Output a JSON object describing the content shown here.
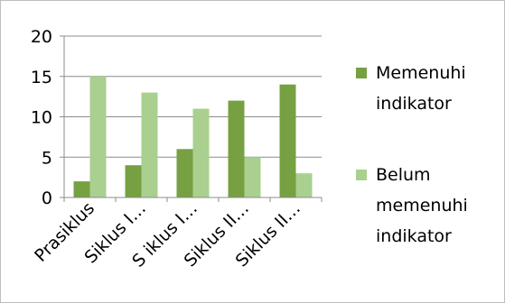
{
  "chart_data": {
    "type": "bar",
    "title": "",
    "xlabel": "",
    "ylabel": "",
    "ylim": [
      0,
      20
    ],
    "yticks": [
      0,
      5,
      10,
      15,
      20
    ],
    "grid": true,
    "legend_position": "right",
    "categories": [
      "Prasiklus",
      "Siklus I…",
      "S iklus I…",
      "Siklus II…",
      "Siklus II…"
    ],
    "series": [
      {
        "name": "Memenuhi indikator",
        "values": [
          2,
          4,
          6,
          12,
          14
        ],
        "color": "#77a043"
      },
      {
        "name": "Belum memenuhi indikator",
        "values": [
          15,
          13,
          11,
          5,
          3
        ],
        "color": "#a9d08e"
      }
    ],
    "legend": [
      {
        "lines": [
          "Memenuhi",
          "indikator"
        ]
      },
      {
        "lines": [
          "Belum",
          "memenuhi",
          "indikator"
        ]
      }
    ]
  }
}
